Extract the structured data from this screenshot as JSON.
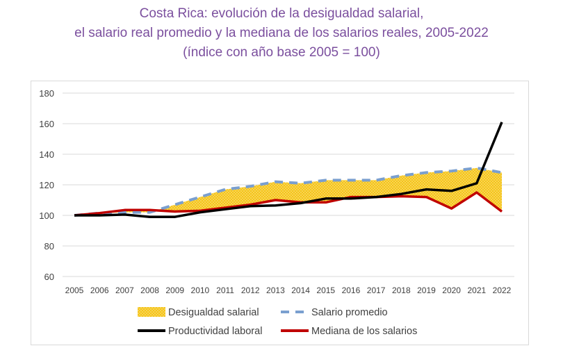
{
  "title_lines": [
    "Costa Rica: evolución de la desigualdad salarial,",
    "el salario real promedio y la mediana de los salarios reales, 2005-2022",
    "(índice con año base 2005 = 100)"
  ],
  "colors": {
    "title": "#7b4f9e",
    "fill": "#f5c518",
    "fill_dots": "#fbe3a0",
    "promedio": "#7a9fcf",
    "productividad": "#000000",
    "mediana": "#c00000",
    "grid": "#d9d9d9"
  },
  "chart_data": {
    "type": "line",
    "title": "Costa Rica: evolución de la desigualdad salarial, el salario real promedio y la mediana de los salarios reales, 2005-2022",
    "subtitle": "(índice con año base 2005 = 100)",
    "x": [
      "2005",
      "2006",
      "2007",
      "2008",
      "2009",
      "2010",
      "2011",
      "2012",
      "2013",
      "2014",
      "2015",
      "2016",
      "2017",
      "2018",
      "2019",
      "2020",
      "2021",
      "2022"
    ],
    "ylim": [
      60,
      180
    ],
    "yticks": [
      60,
      80,
      100,
      120,
      140,
      160,
      180
    ],
    "grid": true,
    "legend_position": "bottom",
    "series": [
      {
        "name": "Salario promedio",
        "style": "dashed",
        "values": [
          100,
          101.5,
          102,
          102,
          107,
          112,
          117,
          119,
          122,
          121,
          123,
          123,
          123,
          126,
          128,
          129,
          131,
          128
        ]
      },
      {
        "name": "Productividad laboral",
        "style": "solid",
        "values": [
          100,
          100,
          100.5,
          99,
          99,
          102,
          104,
          106,
          106.5,
          108,
          111,
          111,
          112,
          114,
          117,
          116,
          121,
          161
        ]
      },
      {
        "name": "Mediana de los salarios",
        "style": "solid",
        "values": [
          100,
          101.5,
          103.5,
          103.5,
          102.5,
          103,
          105,
          107,
          110,
          108.5,
          108.5,
          112,
          112,
          112.5,
          112,
          104.5,
          115,
          102.5
        ]
      }
    ],
    "area": {
      "name": "Desigualdad salarial",
      "between": [
        "Mediana de los salarios",
        "Salario promedio"
      ]
    },
    "legend": [
      "Desigualdad salarial",
      "Salario promedio",
      "Productividad laboral",
      "Mediana de los salarios"
    ]
  }
}
